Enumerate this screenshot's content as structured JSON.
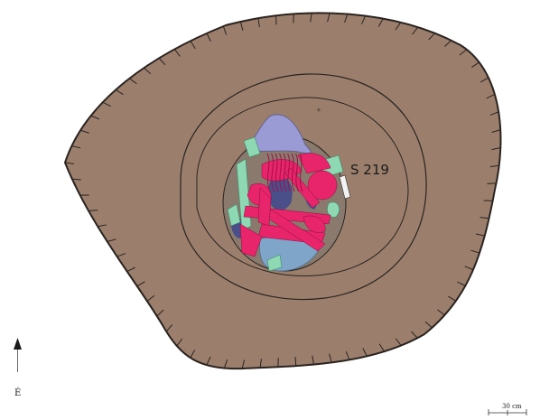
{
  "grave_label": "S 219",
  "north_label": "É",
  "scale_label": "30 cm",
  "colors": {
    "background": "#ffffff",
    "pit_fill": "#9b7f6c",
    "outline": "#2a2320",
    "bone_red": "#e8246a",
    "bone_green": "#8fd8b4",
    "vessel_lavender": "#9a9ad4",
    "vessel_blue": "#7fa6c8",
    "dark_blue": "#4a4f8a"
  },
  "icons": {
    "north_arrow": "north-arrow-icon",
    "scale_bar": "scale-bar-icon"
  }
}
